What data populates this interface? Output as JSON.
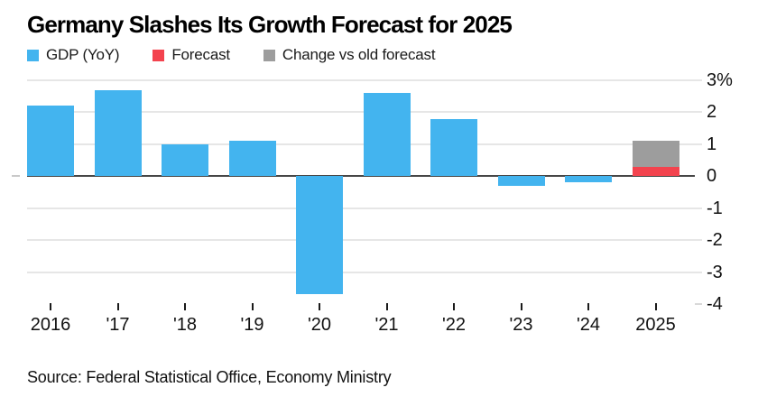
{
  "title": "Germany Slashes Its Growth Forecast for 2025",
  "legend": [
    {
      "label": "GDP (YoY)",
      "color": "#43b4ef"
    },
    {
      "label": "Forecast",
      "color": "#f3434e"
    },
    {
      "label": "Change vs old forecast",
      "color": "#9d9d9d"
    }
  ],
  "source": "Source: Federal Statistical Office, Economy Ministry",
  "colors": {
    "gdp_blue": "#43b4ef",
    "forecast_red": "#f3434e",
    "change_gray": "#9d9d9d",
    "gridline": "#e6e6e6",
    "zero_line": "#474747",
    "text": "#111111"
  },
  "chart_data": {
    "type": "bar",
    "stacked": true,
    "title": "Germany Slashes Its Growth Forecast for 2025",
    "categories": [
      "2016",
      "'17",
      "'18",
      "'19",
      "'20",
      "'21",
      "'22",
      "'23",
      "'24",
      "2025"
    ],
    "series": [
      {
        "key": "gdp",
        "name": "GDP (YoY)",
        "color": "#43b4ef",
        "values": [
          2.2,
          2.7,
          1.0,
          1.1,
          -3.7,
          2.6,
          1.8,
          -0.3,
          -0.2,
          null
        ]
      },
      {
        "key": "forecast",
        "name": "Forecast",
        "color": "#f3434e",
        "values": [
          null,
          null,
          null,
          null,
          null,
          null,
          null,
          null,
          null,
          0.3
        ]
      },
      {
        "key": "change",
        "name": "Change vs old forecast",
        "color": "#9d9d9d",
        "values": [
          null,
          null,
          null,
          null,
          null,
          null,
          null,
          null,
          null,
          0.8
        ]
      }
    ],
    "yticks": [
      {
        "value": 3,
        "label": "3%"
      },
      {
        "value": 2,
        "label": "2"
      },
      {
        "value": 1,
        "label": "1"
      },
      {
        "value": 0,
        "label": "0"
      },
      {
        "value": -1,
        "label": "-1"
      },
      {
        "value": -2,
        "label": "-2"
      },
      {
        "value": -3,
        "label": "-3"
      },
      {
        "value": -4,
        "label": "-4"
      }
    ],
    "ylim": [
      -4,
      3
    ],
    "xlabel": "",
    "ylabel": "",
    "grid": "horizontal",
    "legend_position": "top-left",
    "notes": "2025 bar stacks new forecast (0.3) in red plus change vs old forecast (0.8) in gray, old forecast total 1.1"
  }
}
